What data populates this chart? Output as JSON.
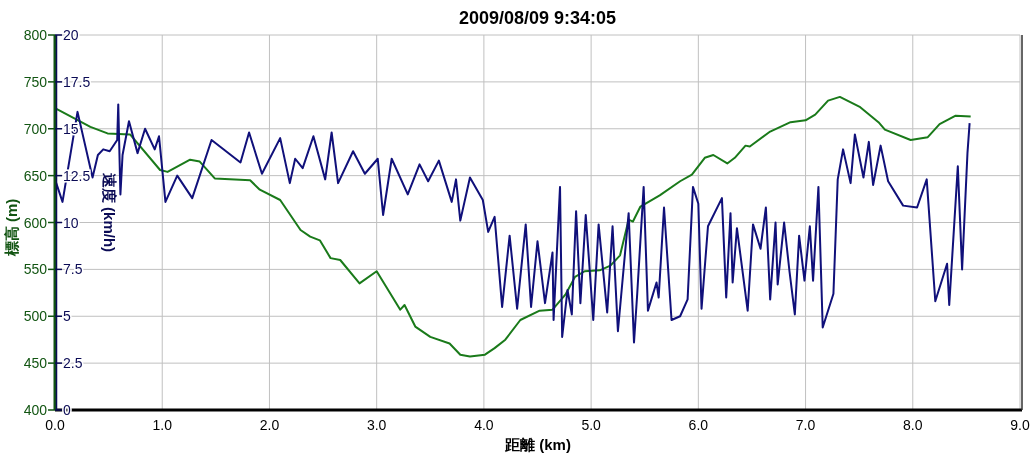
{
  "chart_data": {
    "type": "line",
    "title": "2009/08/09 9:34:05",
    "xlabel": "距離 (km)",
    "ylabel": "標高 (m)",
    "y2label": "速度 (km/h)",
    "xlim": [
      0,
      9
    ],
    "xticks": [
      {
        "value": 0,
        "label": "0.0"
      },
      {
        "value": 1,
        "label": "1.0"
      },
      {
        "value": 2,
        "label": "2.0"
      },
      {
        "value": 3,
        "label": "3.0"
      },
      {
        "value": 4,
        "label": "4.0"
      },
      {
        "value": 5,
        "label": "5.0"
      },
      {
        "value": 6,
        "label": "6.0"
      },
      {
        "value": 7,
        "label": "7.0"
      },
      {
        "value": 8,
        "label": "8.0"
      },
      {
        "value": 9,
        "label": "9.0"
      }
    ],
    "ylim": [
      400,
      800
    ],
    "yticks": [
      400,
      450,
      500,
      550,
      600,
      650,
      700,
      750,
      800
    ],
    "y2lim": [
      0,
      20
    ],
    "y2ticks": [
      0,
      2.5,
      5,
      7.5,
      10,
      12.5,
      15,
      17.5,
      20
    ],
    "grid": true,
    "marker": "none",
    "line_style": "solid",
    "series": [
      {
        "color": "#1a7a1a",
        "x": [
          0,
          0.33,
          0.49,
          0.7,
          0.98,
          1.05,
          1.26,
          1.35,
          1.49,
          1.82,
          1.91,
          2.1,
          2.29,
          2.38,
          2.47,
          2.57,
          2.66,
          2.84,
          3.0,
          3.22,
          3.26,
          3.36,
          3.5,
          3.68,
          3.78,
          3.87,
          4.01,
          4.1,
          4.2,
          4.34,
          4.52,
          4.64,
          4.76,
          4.85,
          4.94,
          5.08,
          5.18,
          5.27,
          5.35,
          5.39,
          5.46,
          5.64,
          5.83,
          5.94,
          6.06,
          6.14,
          6.27,
          6.34,
          6.44,
          6.48,
          6.67,
          6.86,
          7.0,
          7.09,
          7.21,
          7.32,
          7.51,
          7.68,
          7.74,
          7.98,
          8.14,
          8.25,
          8.4,
          8.54
        ],
        "values": [
          722,
          702,
          695,
          694,
          656,
          654,
          667,
          665,
          647,
          645,
          635,
          624,
          592,
          585,
          581,
          562,
          560,
          535,
          548,
          507,
          512,
          489,
          478,
          471,
          459,
          457,
          459,
          466,
          475,
          496,
          506,
          507,
          523,
          542,
          548,
          549,
          554,
          565,
          603,
          601,
          617,
          629,
          644,
          651,
          669,
          672,
          663,
          669,
          682,
          681,
          697,
          707,
          709,
          715,
          730,
          734,
          723,
          707,
          699,
          688,
          691,
          705,
          714,
          713
        ]
      },
      {
        "color": "#10107a",
        "axis": "y2",
        "x": [
          0,
          0.07,
          0.21,
          0.35,
          0.4,
          0.45,
          0.51,
          0.58,
          0.59,
          0.61,
          0.63,
          0.69,
          0.77,
          0.84,
          0.93,
          0.97,
          1.03,
          1.14,
          1.28,
          1.46,
          1.73,
          1.81,
          1.93,
          2.1,
          2.19,
          2.24,
          2.31,
          2.41,
          2.52,
          2.58,
          2.64,
          2.78,
          2.89,
          3.01,
          3.06,
          3.14,
          3.29,
          3.4,
          3.48,
          3.58,
          3.7,
          3.74,
          3.78,
          3.87,
          3.99,
          4.04,
          4.1,
          4.17,
          4.24,
          4.31,
          4.39,
          4.44,
          4.5,
          4.57,
          4.64,
          4.65,
          4.71,
          4.73,
          4.78,
          4.82,
          4.86,
          4.9,
          4.95,
          5.02,
          5.07,
          5.15,
          5.2,
          5.25,
          5.35,
          5.4,
          5.43,
          5.49,
          5.53,
          5.61,
          5.63,
          5.68,
          5.75,
          5.83,
          5.9,
          5.95,
          6.0,
          6.03,
          6.09,
          6.22,
          6.26,
          6.3,
          6.32,
          6.36,
          6.46,
          6.51,
          6.58,
          6.63,
          6.67,
          6.72,
          6.74,
          6.8,
          6.85,
          6.9,
          6.94,
          6.99,
          7.04,
          7.07,
          7.12,
          7.16,
          7.26,
          7.3,
          7.35,
          7.42,
          7.46,
          7.54,
          7.59,
          7.63,
          7.7,
          7.77,
          7.91,
          8.04,
          8.13,
          8.21,
          8.32,
          8.34,
          8.42,
          8.46,
          8.51,
          8.53
        ],
        "values": [
          12.3,
          11.1,
          15.9,
          12.4,
          13.6,
          13.9,
          13.8,
          14.4,
          16.3,
          11.5,
          13.6,
          15.4,
          13.7,
          15.0,
          13.9,
          14.6,
          11.1,
          12.5,
          11.3,
          14.4,
          13.2,
          14.8,
          12.6,
          14.5,
          12.1,
          13.4,
          12.9,
          14.6,
          12.3,
          14.8,
          12.1,
          13.8,
          12.6,
          13.4,
          10.4,
          13.4,
          11.5,
          13.1,
          12.2,
          13.3,
          11.1,
          12.3,
          10.1,
          12.4,
          11.2,
          9.5,
          10.3,
          5.5,
          9.3,
          5.4,
          9.9,
          5.5,
          9.0,
          5.7,
          8.4,
          4.8,
          11.9,
          3.9,
          6.4,
          5.1,
          10.6,
          5.7,
          10.4,
          4.8,
          9.9,
          5.2,
          9.8,
          4.2,
          10.5,
          3.6,
          6.2,
          11.9,
          5.3,
          6.8,
          6.0,
          10.8,
          4.8,
          5.0,
          5.9,
          11.9,
          11.0,
          5.4,
          9.8,
          11.3,
          6.0,
          10.5,
          6.8,
          9.7,
          5.3,
          9.9,
          8.6,
          10.8,
          5.9,
          10.0,
          6.7,
          10.0,
          7.4,
          5.1,
          9.3,
          6.9,
          9.8,
          6.9,
          11.9,
          4.4,
          6.2,
          12.3,
          13.9,
          12.1,
          14.7,
          12.4,
          14.3,
          12.0,
          14.1,
          12.2,
          10.9,
          10.8,
          12.3,
          5.8,
          7.8,
          5.6,
          13.0,
          7.5,
          13.7,
          15.3
        ]
      }
    ]
  }
}
